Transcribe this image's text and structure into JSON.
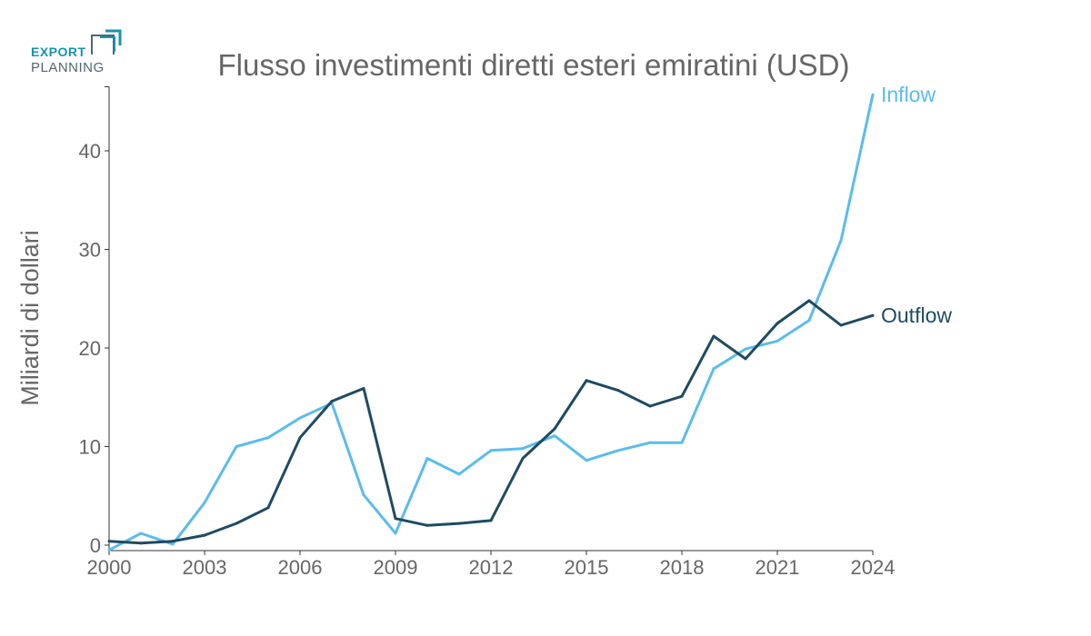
{
  "logo": {
    "line1": "EXPORT",
    "line2": "PLANNING"
  },
  "chart_data": {
    "type": "line",
    "title": "Flusso investimenti diretti esteri emiratini (USD)",
    "xlabel": "",
    "ylabel": "Miliardi di dollari",
    "xlim": [
      2000,
      2024
    ],
    "ylim": [
      0,
      46.5
    ],
    "grid": false,
    "x": [
      2000,
      2001,
      2002,
      2003,
      2004,
      2005,
      2006,
      2007,
      2008,
      2009,
      2010,
      2011,
      2012,
      2013,
      2014,
      2015,
      2016,
      2017,
      2018,
      2019,
      2020,
      2021,
      2022,
      2023,
      2024
    ],
    "x_ticks": [
      "2000",
      "2003",
      "2006",
      "2009",
      "2012",
      "2015",
      "2018",
      "2021",
      "2024"
    ],
    "y_ticks": [
      "0",
      "10",
      "20",
      "30",
      "40"
    ],
    "series": [
      {
        "name": "Inflow",
        "color": "#5bbcec",
        "values": [
          -0.5,
          1.2,
          0.1,
          4.3,
          10.0,
          10.9,
          12.9,
          14.4,
          5.1,
          1.2,
          8.8,
          7.2,
          9.6,
          9.8,
          11.1,
          8.6,
          9.6,
          10.4,
          10.4,
          17.9,
          19.9,
          20.7,
          22.8,
          30.9,
          45.7
        ]
      },
      {
        "name": "Outflow",
        "color": "#1e4b62",
        "values": [
          0.4,
          0.2,
          0.4,
          1.0,
          2.2,
          3.8,
          10.9,
          14.6,
          15.9,
          2.7,
          2.0,
          2.2,
          2.5,
          8.8,
          11.8,
          16.7,
          15.7,
          14.1,
          15.1,
          21.2,
          18.9,
          22.5,
          24.8,
          22.3,
          23.3
        ]
      }
    ]
  }
}
